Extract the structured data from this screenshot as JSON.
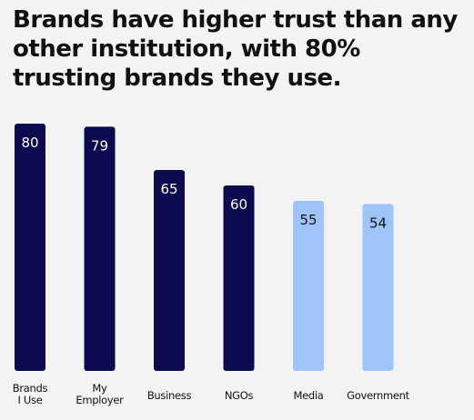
{
  "chart_data": {
    "type": "bar",
    "title": "Brands have higher trust than any other institution, with 80% trusting brands they use.",
    "categories": [
      [
        "Brands",
        "I Use"
      ],
      [
        "My",
        "Employer"
      ],
      [
        "Business"
      ],
      [
        "NGOs"
      ],
      [
        "Media"
      ],
      [
        "Government"
      ]
    ],
    "values": [
      80,
      79,
      65,
      60,
      55,
      54
    ],
    "bar_colors": [
      "#0c0a4f",
      "#0c0a4f",
      "#0c0a4f",
      "#0c0a4f",
      "#9fc5f8",
      "#9fc5f8"
    ],
    "value_label_colors": [
      "#ffffff",
      "#ffffff",
      "#ffffff",
      "#ffffff",
      "#111111",
      "#111111"
    ],
    "xlabel": "",
    "ylabel": "",
    "ylim": [
      0,
      80
    ],
    "grid": false,
    "legend": "none"
  }
}
